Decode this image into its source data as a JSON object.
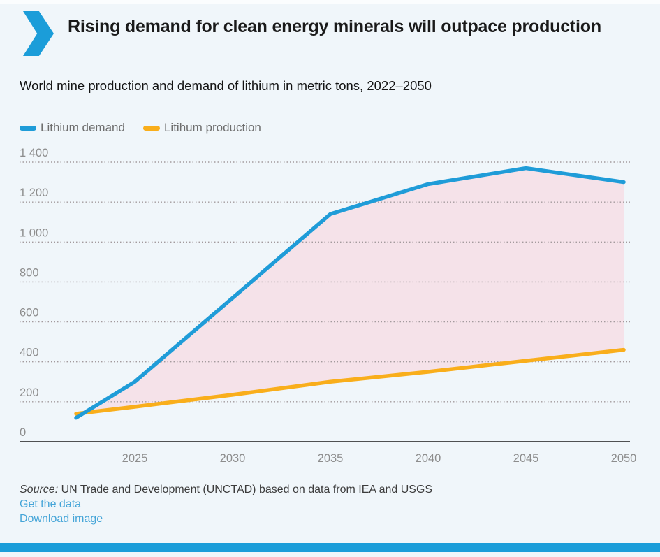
{
  "header": {
    "title": "Rising demand for clean energy minerals will outpace production"
  },
  "subtitle": "World mine production and demand of lithium in metric tons, 2022–2050",
  "legend": [
    {
      "label": "Lithium demand",
      "color": "#1f9cd8"
    },
    {
      "label": "Litihum production",
      "color": "#f9ae1b"
    }
  ],
  "chart_data": {
    "type": "line",
    "title": "Rising demand for clean energy minerals will outpace production",
    "subtitle": "World mine production and demand of lithium in metric tons, 2022–2050",
    "x": [
      2022,
      2025,
      2030,
      2035,
      2040,
      2045,
      2050
    ],
    "series": [
      {
        "name": "Lithium demand",
        "color": "#1f9cd8",
        "values": [
          120,
          300,
          720,
          1140,
          1290,
          1370,
          1300
        ]
      },
      {
        "name": "Litihum production",
        "color": "#f9ae1b",
        "values": [
          140,
          175,
          235,
          300,
          350,
          405,
          460
        ]
      }
    ],
    "ylim": [
      0,
      1400
    ],
    "y_ticks": [
      0,
      200,
      400,
      600,
      800,
      1000,
      1200,
      1400
    ],
    "y_tick_labels": [
      "0",
      "200",
      "400",
      "600",
      "800",
      "1 000",
      "1 200",
      "1 400"
    ],
    "x_ticks": [
      2025,
      2030,
      2035,
      2040,
      2045,
      2050
    ],
    "x_tick_labels": [
      "2025",
      "2030",
      "2035",
      "2040",
      "2045",
      "2050"
    ],
    "grid": "horizontal dotted",
    "legend_position": "top-left",
    "area_fill": "#f5e2e9",
    "area_between_series": true
  },
  "footer": {
    "source_prefix": "Source:",
    "source_text": " UN Trade and Development (UNCTAD) based on data from IEA and USGS",
    "links": [
      {
        "label": "Get the data"
      },
      {
        "label": "Download image"
      }
    ]
  },
  "colors": {
    "accent_blue": "#1b9dd9",
    "demand_line": "#1f9cd8",
    "production_line": "#f9ae1b",
    "area_pink": "#f5e2e9",
    "background": "#f0f6fa"
  }
}
